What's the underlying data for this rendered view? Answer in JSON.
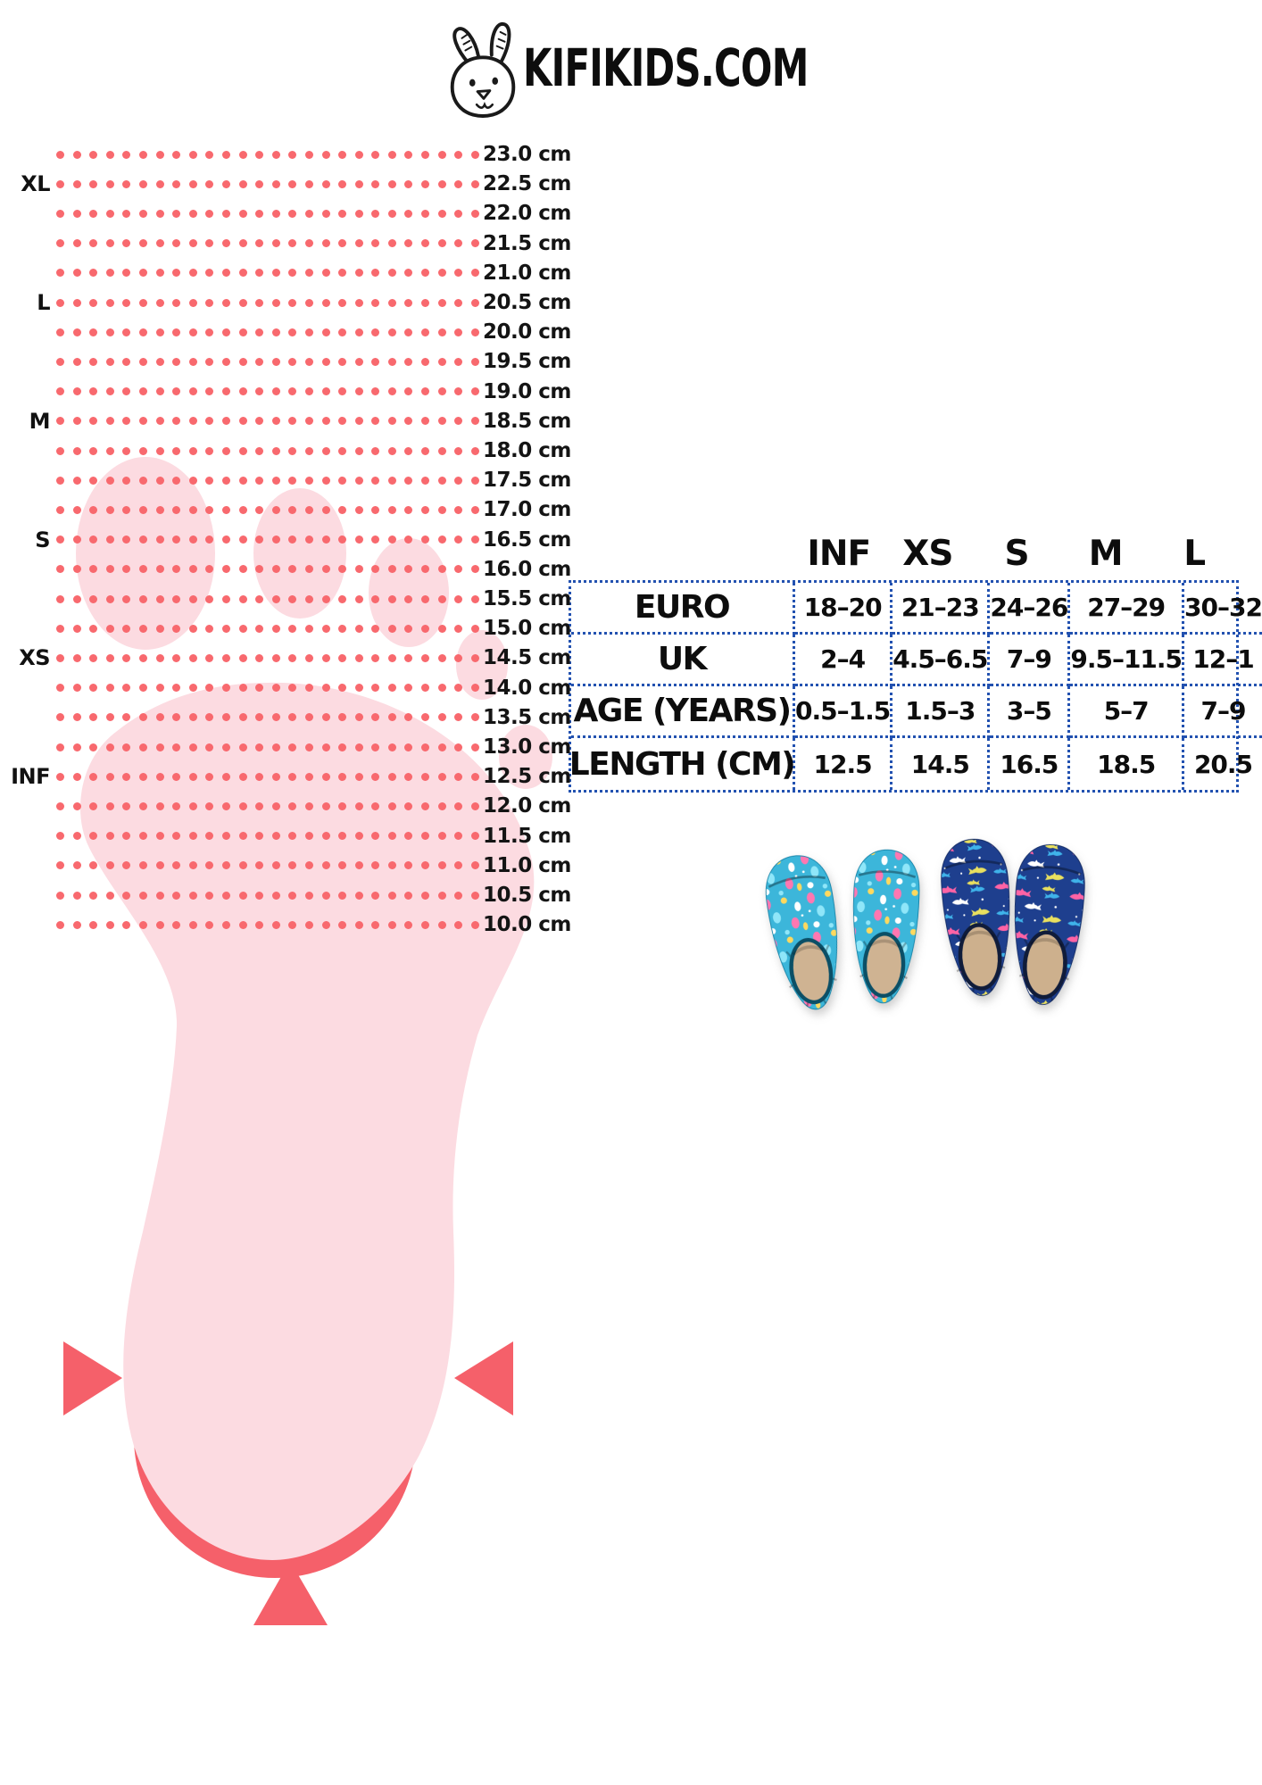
{
  "brand": {
    "title": "KIFIKIDS.COM",
    "logo_icon": "bunny-icon"
  },
  "ruler": {
    "dots_per_row": 26,
    "rows": [
      {
        "cm": "23.0 cm",
        "size": ""
      },
      {
        "cm": "22.5 cm",
        "size": "XL"
      },
      {
        "cm": "22.0 cm",
        "size": ""
      },
      {
        "cm": "21.5 cm",
        "size": ""
      },
      {
        "cm": "21.0 cm",
        "size": ""
      },
      {
        "cm": "20.5 cm",
        "size": "L"
      },
      {
        "cm": "20.0 cm",
        "size": ""
      },
      {
        "cm": "19.5 cm",
        "size": ""
      },
      {
        "cm": "19.0 cm",
        "size": ""
      },
      {
        "cm": "18.5 cm",
        "size": "M"
      },
      {
        "cm": "18.0 cm",
        "size": ""
      },
      {
        "cm": "17.5 cm",
        "size": ""
      },
      {
        "cm": "17.0 cm",
        "size": ""
      },
      {
        "cm": "16.5 cm",
        "size": "S"
      },
      {
        "cm": "16.0 cm",
        "size": ""
      },
      {
        "cm": "15.5 cm",
        "size": ""
      },
      {
        "cm": "15.0 cm",
        "size": ""
      },
      {
        "cm": "14.5 cm",
        "size": "XS"
      },
      {
        "cm": "14.0 cm",
        "size": ""
      },
      {
        "cm": "13.5 cm",
        "size": ""
      },
      {
        "cm": "13.0 cm",
        "size": ""
      },
      {
        "cm": "12.5 cm",
        "size": "INF"
      },
      {
        "cm": "12.0 cm",
        "size": ""
      },
      {
        "cm": "11.5 cm",
        "size": ""
      },
      {
        "cm": "11.0 cm",
        "size": ""
      },
      {
        "cm": "10.5 cm",
        "size": ""
      },
      {
        "cm": "10.0 cm",
        "size": ""
      }
    ]
  },
  "size_table": {
    "headers": [
      "INF",
      "XS",
      "S",
      "M",
      "L"
    ],
    "rows": [
      {
        "label": "EURO",
        "values": [
          "18–20",
          "21–23",
          "24–26",
          "27–29",
          "30–32"
        ]
      },
      {
        "label": "UK",
        "values": [
          "2–4",
          "4.5–6.5",
          "7–9",
          "9.5–11.5",
          "12–1"
        ]
      },
      {
        "label": "AGE (YEARS)",
        "values": [
          "0.5–1.5",
          "1.5–3",
          "3–5",
          "5–7",
          "7–9"
        ]
      },
      {
        "label": "LENGTH (CM)",
        "values": [
          "12.5",
          "14.5",
          "16.5",
          "18.5",
          "20.5"
        ]
      }
    ]
  },
  "colors": {
    "coral": "#f5606a",
    "dot": "#f8696e",
    "pink": "#fcdbe1",
    "table_border": "#2251b0",
    "text": "#141414"
  },
  "shoes": {
    "pairs": [
      {
        "name": "mermaid-print-swim-shoes",
        "base": "#3cb6da",
        "stroke": "#1583a8",
        "insole": "#cfb392",
        "rim": "#0b4f66",
        "pattern": [
          "#ff77b1",
          "#ffd95e",
          "#ffffff",
          "#8fe6f9"
        ]
      },
      {
        "name": "shark-print-swim-shoes",
        "base": "#1e3f8e",
        "stroke": "#142c66",
        "insole": "#cdb08d",
        "rim": "#101c3a",
        "pattern": [
          "#ff63a5",
          "#e9e05f",
          "#ffffff",
          "#3fb3ea"
        ]
      }
    ]
  }
}
